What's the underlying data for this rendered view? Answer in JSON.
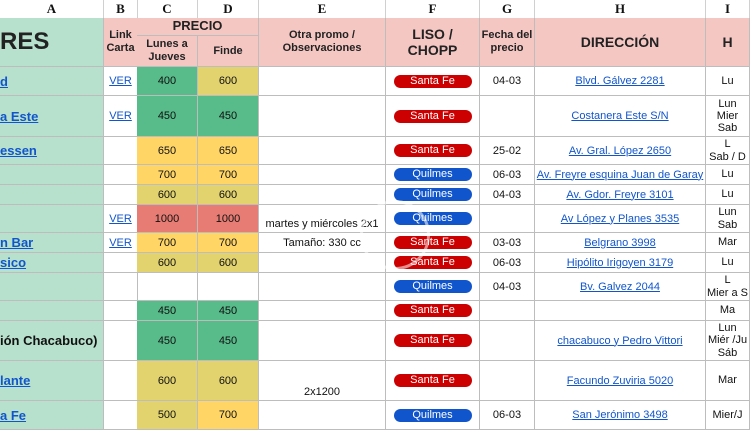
{
  "column_letters": [
    "A",
    "B",
    "C",
    "D",
    "E",
    "F",
    "G",
    "H",
    "I"
  ],
  "headers": {
    "name": "RES",
    "link": "Link Carta",
    "precio": "PRECIO",
    "weekday": "Lunes a Jueves",
    "weekend": "Finde",
    "promo": "Otra promo / Observaciones",
    "type": "LISO / CHOPP",
    "date": "Fecha del precio",
    "address": "DIRECCIÓN",
    "hours": "H"
  },
  "rows": [
    {
      "name": "d",
      "link": "VER",
      "weekday": "400",
      "weekend": "600",
      "promo": "",
      "type": "Santa Fe",
      "date": "04-03",
      "address": "Blvd. Gálvez 2281",
      "hours": "Lu"
    },
    {
      "name": "a Este",
      "link": "VER",
      "weekday": "450",
      "weekend": "450",
      "promo": "",
      "type": "Santa Fe",
      "date": "",
      "address": "Costanera Este S/N",
      "hours": "Lun\nMier\nSab"
    },
    {
      "name": "essen",
      "link": "",
      "weekday": "650",
      "weekend": "650",
      "promo": "",
      "type": "Santa Fe",
      "date": "25-02",
      "address": "Av. Gral. López 2650",
      "hours": "L\nSab / D"
    },
    {
      "name": "",
      "link": "",
      "weekday": "700",
      "weekend": "700",
      "promo": "",
      "type": "Quilmes",
      "date": "06-03",
      "address": "Av. Freyre esquina Juan de Garay",
      "hours": "Lu"
    },
    {
      "name": "",
      "link": "",
      "weekday": "600",
      "weekend": "600",
      "promo": "",
      "type": "Quilmes",
      "date": "04-03",
      "address": "Av. Gdor. Freyre 3101",
      "hours": "Lu"
    },
    {
      "name": "",
      "link": "VER",
      "weekday": "1000",
      "weekend": "1000",
      "promo": "martes y miércoles 2x1",
      "type": "Quilmes",
      "date": "",
      "address": "Av López y Planes 3535",
      "hours": "Lun\nSab"
    },
    {
      "name": "n Bar",
      "link": "VER",
      "weekday": "700",
      "weekend": "700",
      "promo": "Tamaño: 330 cc",
      "type": "Santa Fe",
      "date": "03-03",
      "address": "Belgrano 3998",
      "hours": "Mar"
    },
    {
      "name": "sico",
      "link": "",
      "weekday": "600",
      "weekend": "600",
      "promo": "",
      "type": "Santa Fe",
      "date": "06-03",
      "address": "Hipólito Irigoyen 3179",
      "hours": "Lu"
    },
    {
      "name": "",
      "link": "",
      "weekday": "",
      "weekend": "",
      "promo": "",
      "type": "Quilmes",
      "date": "04-03",
      "address": "Bv. Galvez 2044",
      "hours": "L\nMier a S"
    },
    {
      "name": "",
      "link": "",
      "weekday": "450",
      "weekend": "450",
      "promo": "",
      "type": "Santa Fe",
      "date": "",
      "address": "",
      "hours": "Ma"
    },
    {
      "name": "ión Chacabuco)",
      "link": "",
      "weekday": "450",
      "weekend": "450",
      "promo": "",
      "type": "Santa Fe",
      "date": "",
      "address": "chacabuco y Pedro Vittori",
      "hours": "Lun\nMiér /Ju\nSáb"
    },
    {
      "name": "lante",
      "link": "",
      "weekday": "600",
      "weekend": "600",
      "promo": "2x1200",
      "type": "Santa Fe",
      "date": "",
      "address": "Facundo Zuviria 5020",
      "hours": "Mar"
    },
    {
      "name": "a Fe",
      "link": "",
      "weekday": "500",
      "weekend": "700",
      "promo": "",
      "type": "Quilmes",
      "date": "06-03",
      "address": "San Jerónimo 3498",
      "hours": "Mier/J"
    }
  ],
  "colors": {
    "header_pink": "#f4c7c3",
    "name_green": "#b7e1cd",
    "price_green": "#57bb8a",
    "price_yellow_green": "#e2d36e",
    "price_orange": "#ffd666",
    "price_red": "#e67c73",
    "santa_fe_red": "#cc0000",
    "quilmes_blue": "#1155cc"
  }
}
